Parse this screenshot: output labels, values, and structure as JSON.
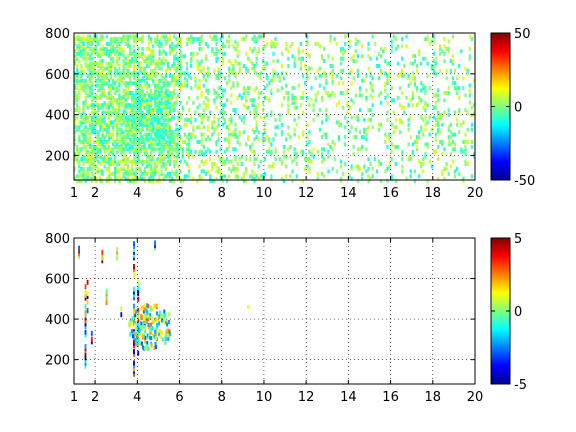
{
  "chart_data": [
    {
      "type": "heatmap",
      "title": "",
      "xlabel": "",
      "ylabel": "",
      "xlim": [
        1,
        20
      ],
      "ylim": [
        80,
        800
      ],
      "xticks": [
        1,
        2,
        4,
        6,
        8,
        10,
        12,
        14,
        16,
        18,
        20
      ],
      "yticks": [
        200,
        400,
        600,
        800
      ],
      "grid": true,
      "colorbar": {
        "range": [
          -50,
          50
        ],
        "ticks": [
          -50,
          0,
          50
        ]
      },
      "pattern": {
        "density": "dense",
        "cluster": {
          "x": [
            3.5,
            5.5
          ],
          "y": [
            250,
            500
          ]
        },
        "values": "mostly near 0 (green/cyan/yellow)"
      }
    },
    {
      "type": "heatmap",
      "title": "",
      "xlabel": "",
      "ylabel": "",
      "xlim": [
        1,
        20
      ],
      "ylim": [
        80,
        800
      ],
      "xticks": [
        1,
        2,
        4,
        6,
        8,
        10,
        12,
        14,
        16,
        18,
        20
      ],
      "yticks": [
        200,
        400,
        600,
        800
      ],
      "grid": true,
      "colorbar": {
        "range": [
          -5,
          5
        ],
        "ticks": [
          -5,
          0,
          5
        ]
      },
      "pattern": {
        "density": "sparse",
        "cluster": {
          "x": [
            3.5,
            5.5
          ],
          "y": [
            250,
            500
          ]
        },
        "values": "mixed, mostly near 0"
      }
    }
  ],
  "colormap": [
    "#00008f",
    "#0000ff",
    "#00ffff",
    "#80ff80",
    "#ffff00",
    "#ff0000",
    "#800000"
  ]
}
